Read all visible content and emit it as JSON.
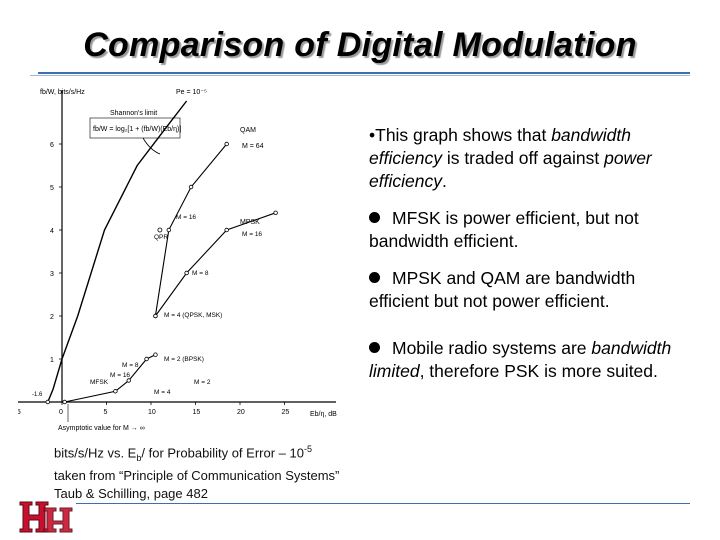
{
  "slide": {
    "title": "Comparison of Digital Modulation",
    "bullets": [
      {
        "pre": "•This graph shows that ",
        "em1": "bandwidth efficiency",
        "mid": " is traded off against ",
        "em2": "power efficiency",
        "post": "."
      },
      {
        "text": "MFSK is power efficient, but not bandwidth efficient."
      },
      {
        "text": "MPSK and QAM are bandwidth efficient but not power efficient."
      },
      {
        "pre": "Mobile radio systems are ",
        "em": "bandwidth limited",
        "post": ", therefore PSK is more suited."
      }
    ],
    "caption": {
      "line1_a": "bits/s/Hz vs. E",
      "line1_sub": "b",
      "line1_b": "/    for Probability of Error ",
      "line1_c": "– 10",
      "line1_sup": "-5",
      "line2": "taken from “Principle of Communication Systems”",
      "line3": "Taub & Schilling, page 482"
    }
  },
  "graph": {
    "y_axis_label": "fb/W, bits/s/Hz",
    "pe_label": "Pe = 10⁻⁵",
    "shannon_label": "Shannon's limit",
    "shannon_formula": "fb/W = log₂[1 + (fb/W)(Eb/η)]",
    "x_axis_label": "Eb/η, dB",
    "asymptote_label": "Asymptotic value for M → ∞",
    "asymptote_value": "-1.6",
    "x_ticks": [
      "-5",
      "0",
      "5",
      "10",
      "15",
      "20",
      "25"
    ],
    "y_ticks": [
      "1",
      "2",
      "3",
      "4",
      "5",
      "6"
    ],
    "labels": {
      "qam": "QAM",
      "qam_m": "M = 64",
      "mpsk": "MPSK",
      "mpsk_m": "M = 16",
      "qam16": "M = 16",
      "qpr": "QPR",
      "m8": "M = 8",
      "m4": "M = 4 (QPSK, MSK)",
      "m2": "M = 2 (BPSK)",
      "mfsk": "MFSK",
      "mfsk_m8": "M = 8",
      "mfsk_m16": "M = 16",
      "mfsk_m2": "M = 2",
      "mfsk_m4": "M = 4"
    }
  },
  "chart_data": {
    "type": "line",
    "title": "",
    "xlabel": "Eb/η, dB",
    "ylabel": "fb/W, bits/s/Hz",
    "xlim": [
      -5,
      28
    ],
    "ylim": [
      0,
      7
    ],
    "series": [
      {
        "name": "Shannon's limit",
        "x": [
          -1.6,
          -1.0,
          0,
          1.76,
          4.77,
          8.45,
          11.76,
          14.0
        ],
        "y": [
          0,
          0.3,
          1,
          2,
          4,
          5.5,
          6.4,
          7
        ]
      },
      {
        "name": "QAM",
        "x": [
          10.5,
          12,
          14.5,
          18.5
        ],
        "y": [
          2,
          4,
          5,
          6
        ]
      },
      {
        "name": "MPSK",
        "x": [
          10.5,
          14,
          18.5,
          24
        ],
        "y": [
          2,
          3,
          4,
          4.4
        ]
      },
      {
        "name": "MFSK",
        "x": [
          0.3,
          6,
          7.5,
          9.5,
          10.5
        ],
        "y": [
          0,
          0.25,
          0.5,
          1,
          1.1
        ]
      }
    ],
    "points": [
      {
        "label": "QPR",
        "x": 11,
        "y": 4
      }
    ]
  }
}
